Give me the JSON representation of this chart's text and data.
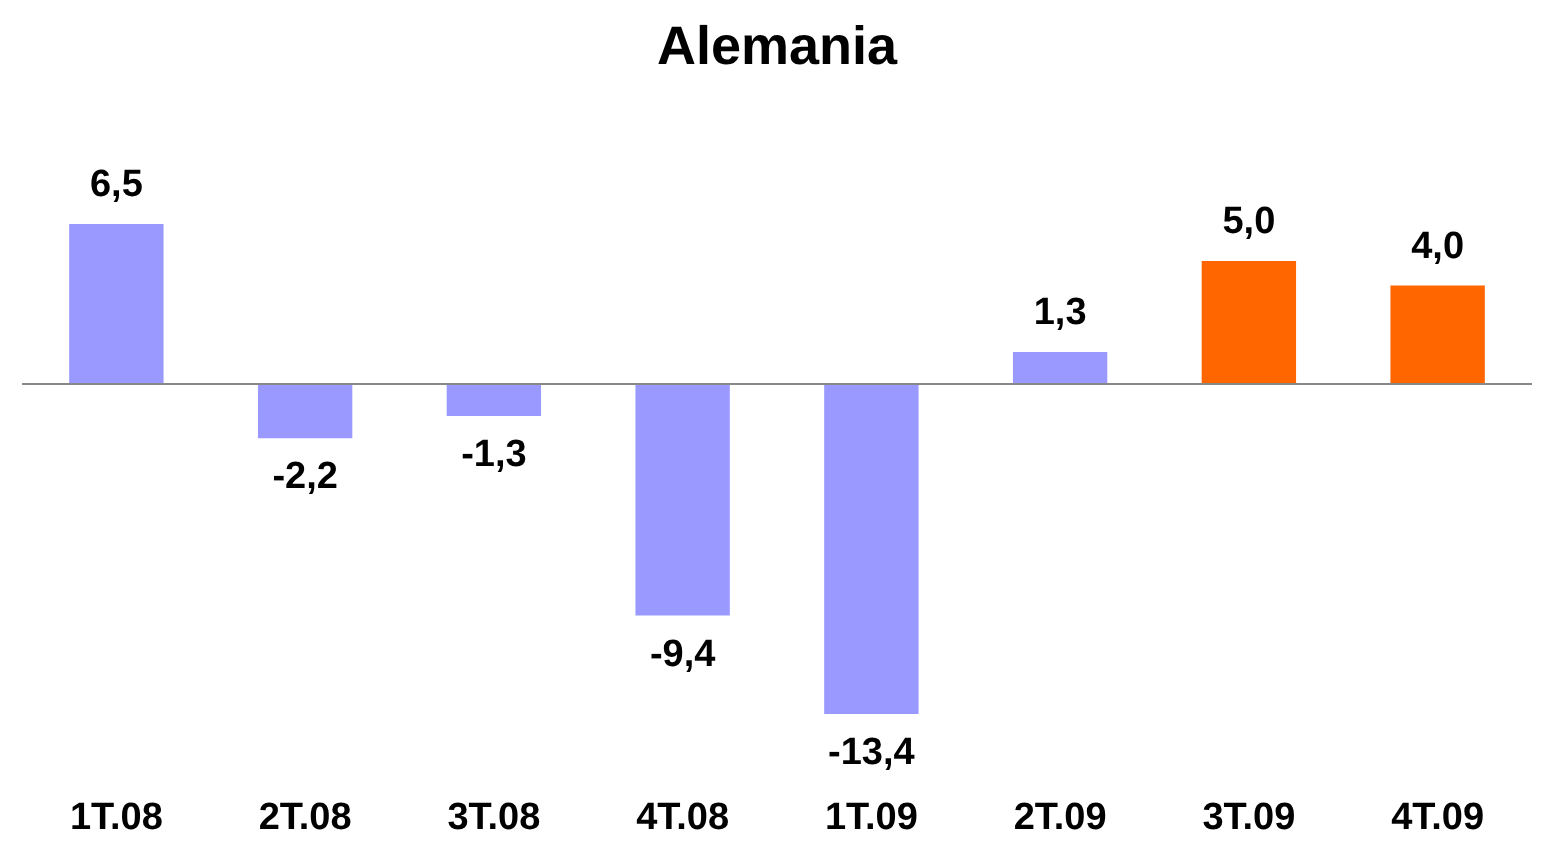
{
  "chart_data": {
    "type": "bar",
    "title": "Alemania",
    "categories": [
      "1T.08",
      "2T.08",
      "3T.08",
      "4T.08",
      "1T.09",
      "2T.09",
      "3T.09",
      "4T.09"
    ],
    "values": [
      6.5,
      -2.2,
      -1.3,
      -9.4,
      -13.4,
      1.3,
      5.0,
      4.0
    ],
    "colors": [
      "#9999ff",
      "#9999ff",
      "#9999ff",
      "#9999ff",
      "#9999ff",
      "#9999ff",
      "#ff6600",
      "#ff6600"
    ],
    "value_labels": [
      "6,5",
      "-2,2",
      "-1,3",
      "-9,4",
      "-13,4",
      "1,3",
      "5,0",
      "4,0"
    ]
  }
}
